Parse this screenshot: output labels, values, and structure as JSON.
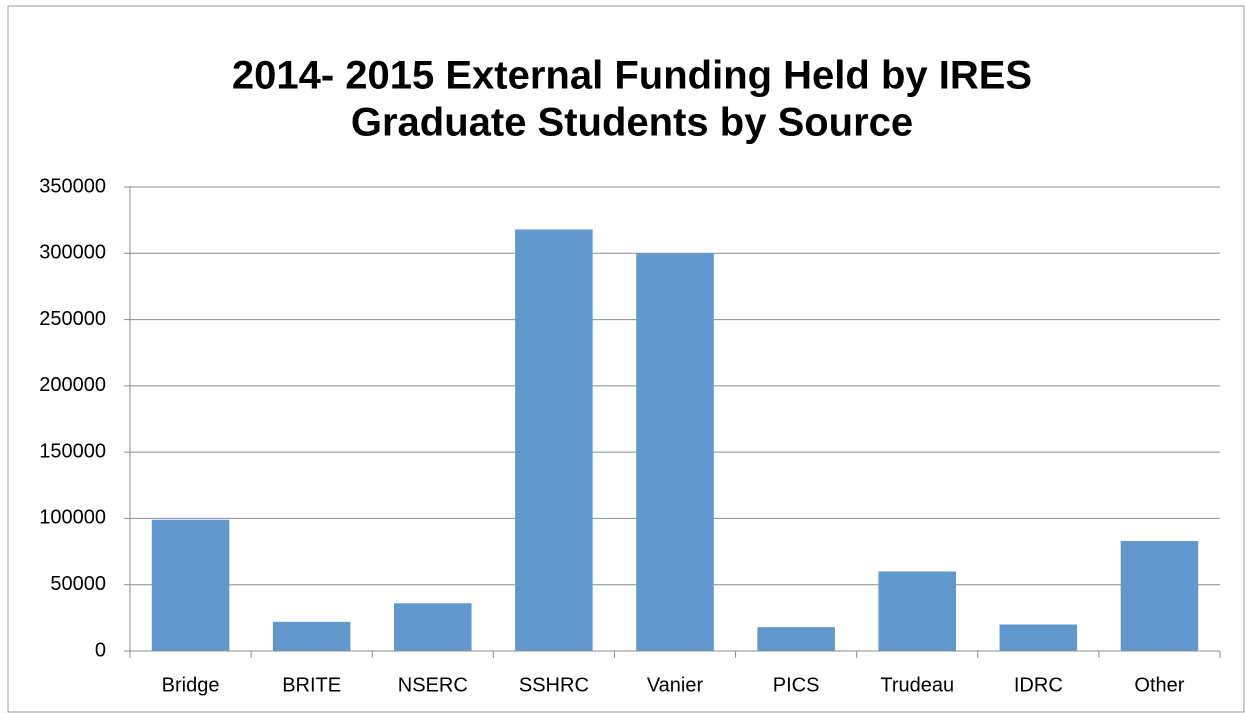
{
  "chart_data": {
    "type": "bar",
    "title": [
      "2014- 2015 External Funding Held by IRES",
      "Graduate Students by Source"
    ],
    "categories": [
      "Bridge",
      "BRITE",
      "NSERC",
      "SSHRC",
      "Vanier",
      "PICS",
      "Trudeau",
      "IDRC",
      "Other"
    ],
    "values": [
      99000,
      22000,
      36000,
      318000,
      300000,
      18000,
      60000,
      20000,
      83000
    ],
    "color": "#6097cc",
    "ylim": [
      0,
      350000
    ],
    "yticks": [
      0,
      50000,
      100000,
      150000,
      200000,
      250000,
      300000,
      350000
    ],
    "grid": true
  }
}
